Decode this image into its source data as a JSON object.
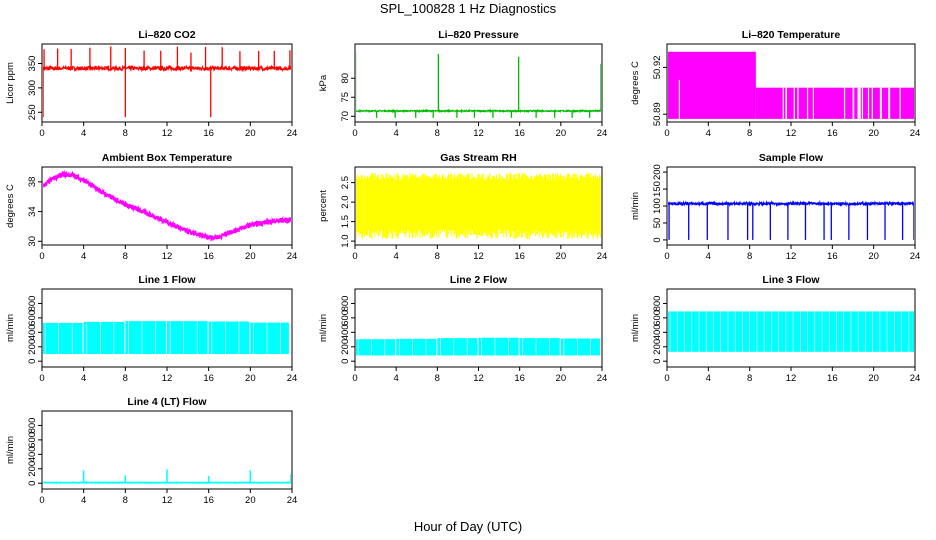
{
  "figure": {
    "title": "SPL_100828  1 Hz Diagnostics",
    "xlabel": "Hour of Day (UTC)"
  },
  "chart_data": [
    {
      "type": "line",
      "title": "Li–820 CO2",
      "ylabel": "Licor ppm",
      "color": "#ff0000",
      "xlim": [
        0,
        24
      ],
      "xticks": [
        0,
        4,
        8,
        12,
        16,
        20,
        24
      ],
      "ylim": [
        230,
        390
      ],
      "yticks": [
        250,
        300,
        350
      ],
      "series": [
        {
          "baseline": 340,
          "noise": 4,
          "spikes_up": [
            0.2,
            1.5,
            2.8,
            4.6,
            6.6,
            8.0,
            9.8,
            11.4,
            13.0,
            14.3,
            15.7,
            17.3,
            19.0,
            20.8,
            22.3,
            23.8
          ],
          "spike_up_to": 385,
          "spikes_down": [
            0.1,
            8.0,
            16.2
          ],
          "spike_down_to": 240
        }
      ]
    },
    {
      "type": "line",
      "title": "Li–820 Pressure",
      "ylabel": "kPa",
      "color": "#00bb00",
      "xlim": [
        0,
        24
      ],
      "xticks": [
        0,
        4,
        8,
        12,
        16,
        20,
        24
      ],
      "ylim": [
        68.5,
        89
      ],
      "yticks": [
        70,
        75,
        80
      ],
      "series": [
        {
          "baseline": 71.4,
          "noise": 0.15,
          "spikes_up": [
            0.05,
            8.1,
            15.9,
            23.9
          ],
          "spike_up_to": 88,
          "spikes_down": [
            2.1,
            3.9,
            5.9,
            7.6,
            9.9,
            11.6,
            13.4,
            15.2,
            17.6,
            19.4,
            21.1,
            22.8
          ],
          "spike_down_to": 69.6
        }
      ]
    },
    {
      "type": "area",
      "title": "Li–820 Temperature",
      "ylabel": "degrees C",
      "color": "#ff00ff",
      "xlim": [
        0,
        24
      ],
      "xticks": [
        0,
        4,
        8,
        12,
        16,
        20,
        24
      ],
      "ylim": [
        50.885,
        50.935
      ],
      "yticks": [
        50.89,
        50.92
      ],
      "series": [
        {
          "segments": [
            [
              0,
              8.6,
              50.93
            ],
            [
              8.6,
              24,
              50.907
            ]
          ],
          "floor": 50.887
        }
      ]
    },
    {
      "type": "line",
      "title": "Ambient Box Temperature",
      "ylabel": "degrees C",
      "color": "#ff00ff",
      "xlim": [
        0,
        24
      ],
      "xticks": [
        0,
        4,
        8,
        12,
        16,
        20,
        24
      ],
      "ylim": [
        29.5,
        40
      ],
      "yticks": [
        30,
        34,
        38
      ],
      "series": [
        {
          "x": [
            0,
            1,
            2,
            3,
            4,
            6,
            8,
            10,
            12,
            14,
            16,
            17,
            18,
            20,
            22,
            24
          ],
          "y": [
            37.3,
            38.4,
            39.0,
            38.9,
            38.2,
            36.4,
            35.0,
            33.8,
            32.6,
            31.3,
            30.5,
            30.6,
            31.2,
            32.2,
            32.7,
            32.9
          ],
          "noise": 0.35
        }
      ]
    },
    {
      "type": "area",
      "title": "Gas Stream RH",
      "ylabel": "percent",
      "color": "#ffff00",
      "xlim": [
        0,
        24
      ],
      "xticks": [
        0,
        4,
        8,
        12,
        16,
        20,
        24
      ],
      "ylim": [
        0.9,
        2.9
      ],
      "yticks": [
        1.0,
        1.5,
        2.0,
        2.5
      ],
      "series": [
        {
          "upper": 2.55,
          "lower": 1.3,
          "min": 1.05,
          "max": 2.75
        }
      ]
    },
    {
      "type": "line",
      "title": "Sample Flow",
      "ylabel": "ml/min",
      "color": "#0000ff",
      "xlim": [
        0,
        24
      ],
      "xticks": [
        0,
        4,
        8,
        12,
        16,
        20,
        24
      ],
      "ylim": [
        -15,
        215
      ],
      "yticks": [
        0,
        50,
        100,
        150,
        200
      ],
      "series": [
        {
          "baseline": 107,
          "noise": 4,
          "spikes_down": [
            0.2,
            2.1,
            3.9,
            5.9,
            7.8,
            8.3,
            10.0,
            11.7,
            13.4,
            15.2,
            15.9,
            17.6,
            19.4,
            21.1,
            22.8,
            23.9
          ],
          "spike_down_to": 0
        }
      ]
    },
    {
      "type": "area",
      "title": "Line 1 Flow",
      "ylabel": "ml/min",
      "color": "#00ffff",
      "xlim": [
        0,
        24
      ],
      "xticks": [
        0,
        4,
        8,
        12,
        16,
        20,
        24
      ],
      "ylim": [
        -80,
        1000
      ],
      "yticks": [
        0,
        200,
        400,
        600,
        800
      ],
      "series": [
        {
          "segments": [
            [
              0,
              3.9,
              530,
              100
            ],
            [
              4.0,
              7.9,
              545,
              100
            ],
            [
              8.0,
              11.9,
              555,
              100
            ],
            [
              12.0,
              15.9,
              555,
              100
            ],
            [
              16.0,
              19.9,
              550,
              100
            ],
            [
              20.0,
              23.7,
              535,
              100
            ]
          ]
        }
      ]
    },
    {
      "type": "area",
      "title": "Line 2 Flow",
      "ylabel": "ml/min",
      "color": "#00ffff",
      "xlim": [
        0,
        24
      ],
      "xticks": [
        0,
        4,
        8,
        12,
        16,
        20,
        24
      ],
      "ylim": [
        -80,
        1000
      ],
      "yticks": [
        0,
        200,
        400,
        600,
        800
      ],
      "series": [
        {
          "segments": [
            [
              0,
              3.9,
              305,
              80
            ],
            [
              4.0,
              7.9,
              310,
              80
            ],
            [
              8.0,
              11.9,
              320,
              80
            ],
            [
              12.0,
              15.9,
              325,
              80
            ],
            [
              16.0,
              19.9,
              320,
              80
            ],
            [
              20.0,
              23.8,
              315,
              80
            ]
          ]
        }
      ]
    },
    {
      "type": "area",
      "title": "Line 3 Flow",
      "ylabel": "ml/min",
      "color": "#00ffff",
      "xlim": [
        0,
        24
      ],
      "xticks": [
        0,
        4,
        8,
        12,
        16,
        20,
        24
      ],
      "ylim": [
        -80,
        1000
      ],
      "yticks": [
        0,
        200,
        400,
        600,
        800
      ],
      "series": [
        {
          "segments": [
            [
              0,
              23.9,
              690,
              130
            ]
          ]
        }
      ]
    },
    {
      "type": "line",
      "title": "Line 4 (LT) Flow",
      "ylabel": "ml/min",
      "color": "#00ffff",
      "xlim": [
        0,
        24
      ],
      "xticks": [
        0,
        4,
        8,
        12,
        16,
        20,
        24
      ],
      "ylim": [
        -80,
        1000
      ],
      "yticks": [
        0,
        200,
        400,
        600,
        800
      ],
      "series": [
        {
          "baseline": 8,
          "noise": 3,
          "spikes_up": [
            4.0,
            8.0,
            12.0,
            16.0,
            20.0,
            23.9
          ],
          "spike_heights": [
            180,
            110,
            190,
            100,
            180,
            130
          ]
        }
      ]
    }
  ]
}
